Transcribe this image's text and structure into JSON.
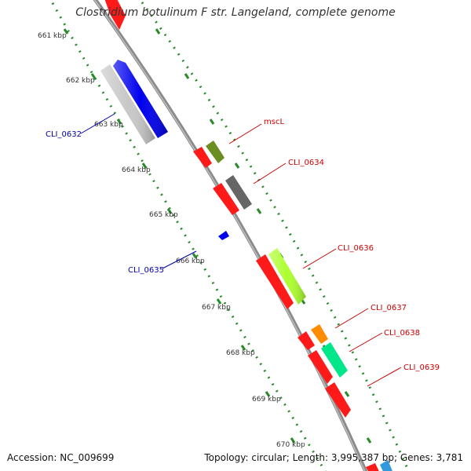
{
  "title": "Clostridium botulinum F str. Langeland, complete genome",
  "accession": "Accession: NC_009699",
  "topology": "Topology: circular; Length: 3,995,387 bp; Genes: 3,781",
  "colors": {
    "backbone": "#888888",
    "tick": "#2a8a2a",
    "reverse_label": "#0000aa",
    "forward_label": "#cc0000"
  },
  "ticks": [
    {
      "label": "661 kbp"
    },
    {
      "label": "662 kbp"
    },
    {
      "label": "663 kbp"
    },
    {
      "label": "664 kbp"
    },
    {
      "label": "665 kbp"
    },
    {
      "label": "666 kbp"
    },
    {
      "label": "667 kbp"
    },
    {
      "label": "668 kbp"
    },
    {
      "label": "669 kbp"
    },
    {
      "label": "670 kbp"
    }
  ],
  "gene_labels": [
    {
      "id": "CLI_0632",
      "text": "CLI_0632",
      "strand": "reverse"
    },
    {
      "id": "mscL",
      "text": "mscL",
      "strand": "forward"
    },
    {
      "id": "CLI_0634",
      "text": "CLI_0634",
      "strand": "forward"
    },
    {
      "id": "CLI_0635",
      "text": "CLI_0635",
      "strand": "reverse"
    },
    {
      "id": "CLI_0636",
      "text": "CLI_0636",
      "strand": "forward"
    },
    {
      "id": "CLI_0637",
      "text": "CLI_0637",
      "strand": "forward"
    },
    {
      "id": "CLI_0638",
      "text": "CLI_0638",
      "strand": "forward"
    },
    {
      "id": "CLI_0639",
      "text": "CLI_0639",
      "strand": "forward"
    }
  ]
}
